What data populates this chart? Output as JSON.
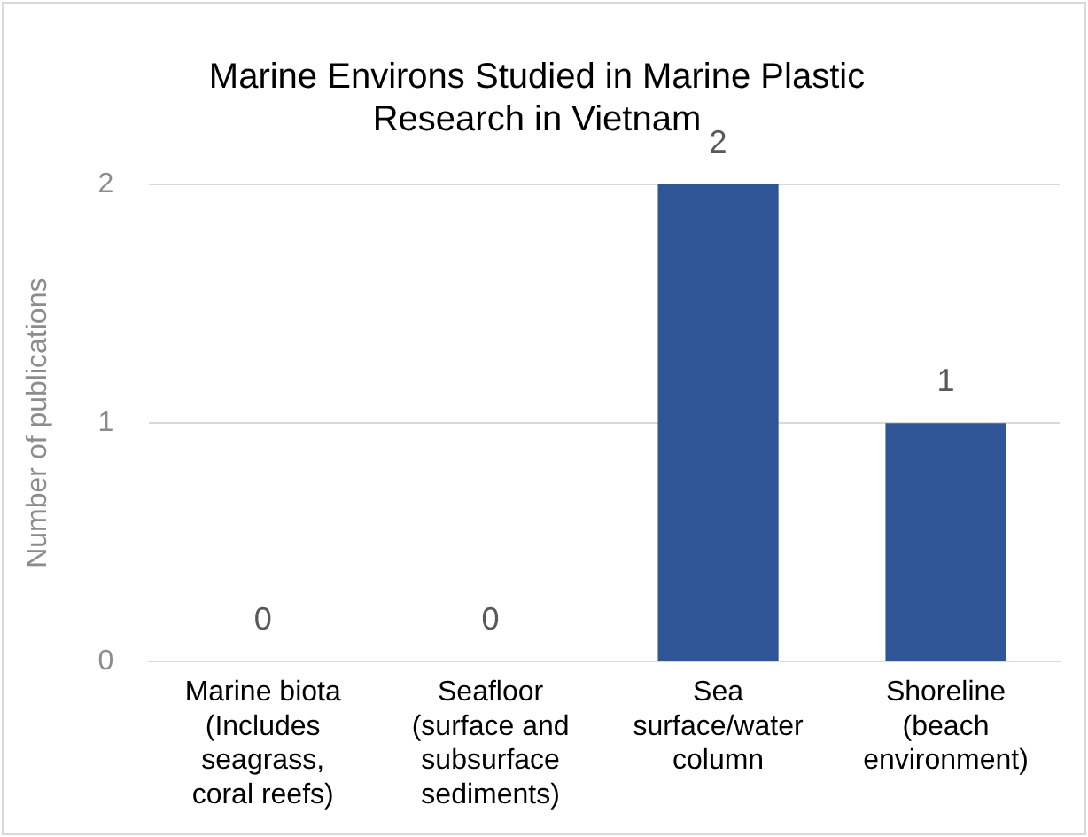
{
  "chart_data": {
    "type": "bar",
    "title": "Marine Environs Studied in Marine Plastic Research in Vietnam",
    "ylabel": "Number of publications",
    "categories": [
      "Marine biota (Includes seagrass, coral reefs)",
      "Seafloor (surface and subsurface sediments)",
      "Sea surface/water column",
      "Shoreline (beach environment)"
    ],
    "values": [
      0,
      0,
      2,
      1
    ],
    "color": "#2f5597",
    "ylim": [
      0,
      2
    ],
    "yticks": [
      0,
      1,
      2
    ],
    "grid": "y",
    "data_labels": true
  }
}
